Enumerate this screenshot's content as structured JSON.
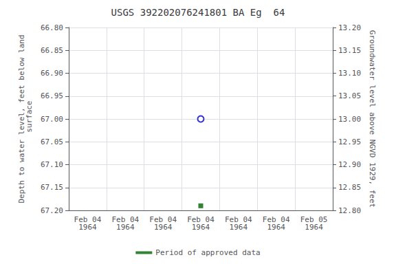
{
  "chart_data": {
    "type": "scatter",
    "title": "USGS 392202076241801 BA Eg  64",
    "ylabel": "Depth to water level, feet below land\n surface",
    "y2label": "Groundwater level above NGVD 1929, feet",
    "categories": [
      "Feb 04\n1964",
      "Feb 04\n1964",
      "Feb 04\n1964",
      "Feb 04\n1964",
      "Feb 04\n1964",
      "Feb 04\n1964",
      "Feb 05\n1964"
    ],
    "series": [
      {
        "values": [
          null,
          null,
          null,
          67.0,
          null,
          null,
          null
        ],
        "color": "#0000cc",
        "marker": "open_circle"
      },
      {
        "name": "Period of approved data",
        "values": [
          null,
          null,
          null,
          67.19,
          null,
          null,
          null
        ],
        "color": "#006400",
        "marker": "square"
      }
    ],
    "ylim": [
      67.2,
      66.8
    ],
    "yticks": [
      {
        "value": 66.8,
        "label": "66.80"
      },
      66.85,
      {
        "value": 66.9,
        "label": "66.90"
      },
      66.95,
      {
        "value": 67.0,
        "label": "67.00"
      },
      67.05,
      {
        "value": 67.1,
        "label": "67.10"
      },
      67.15,
      {
        "value": 67.2,
        "label": "67.20"
      }
    ],
    "y2lim": [
      12.8,
      13.2
    ],
    "y2ticks": [
      {
        "value": 12.8,
        "label": "12.80"
      },
      12.85,
      {
        "value": 12.9,
        "label": "12.90"
      },
      12.95,
      {
        "value": 13.0,
        "label": "13.00"
      },
      13.05,
      {
        "value": 13.1,
        "label": "13.10"
      },
      13.15,
      {
        "value": 13.2,
        "label": "13.20"
      }
    ],
    "grid": true,
    "legend": "bottom"
  }
}
